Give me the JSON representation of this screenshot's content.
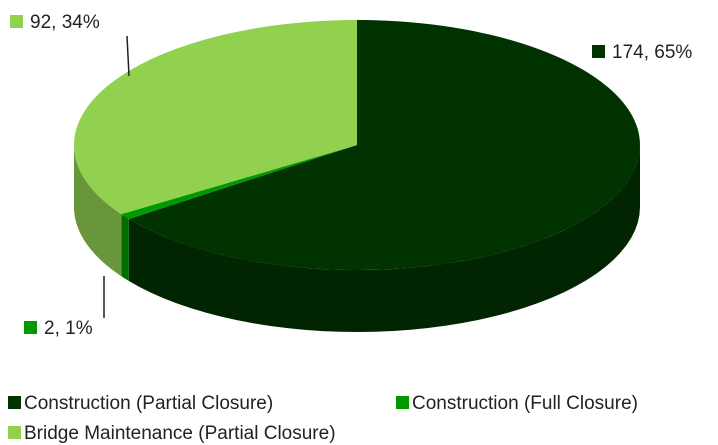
{
  "chart_data": {
    "type": "pie",
    "categories": [
      "Construction (Partial Closure)",
      "Construction (Full Closure)",
      "Bridge Maintenance (Partial Closure)"
    ],
    "values": [
      174,
      2,
      92
    ],
    "value_labels": [
      "174, 65%",
      "2, 1%",
      "92, 34%"
    ],
    "colors": [
      "#003300",
      "#009900",
      "#92d050"
    ],
    "legend": "bottom"
  }
}
